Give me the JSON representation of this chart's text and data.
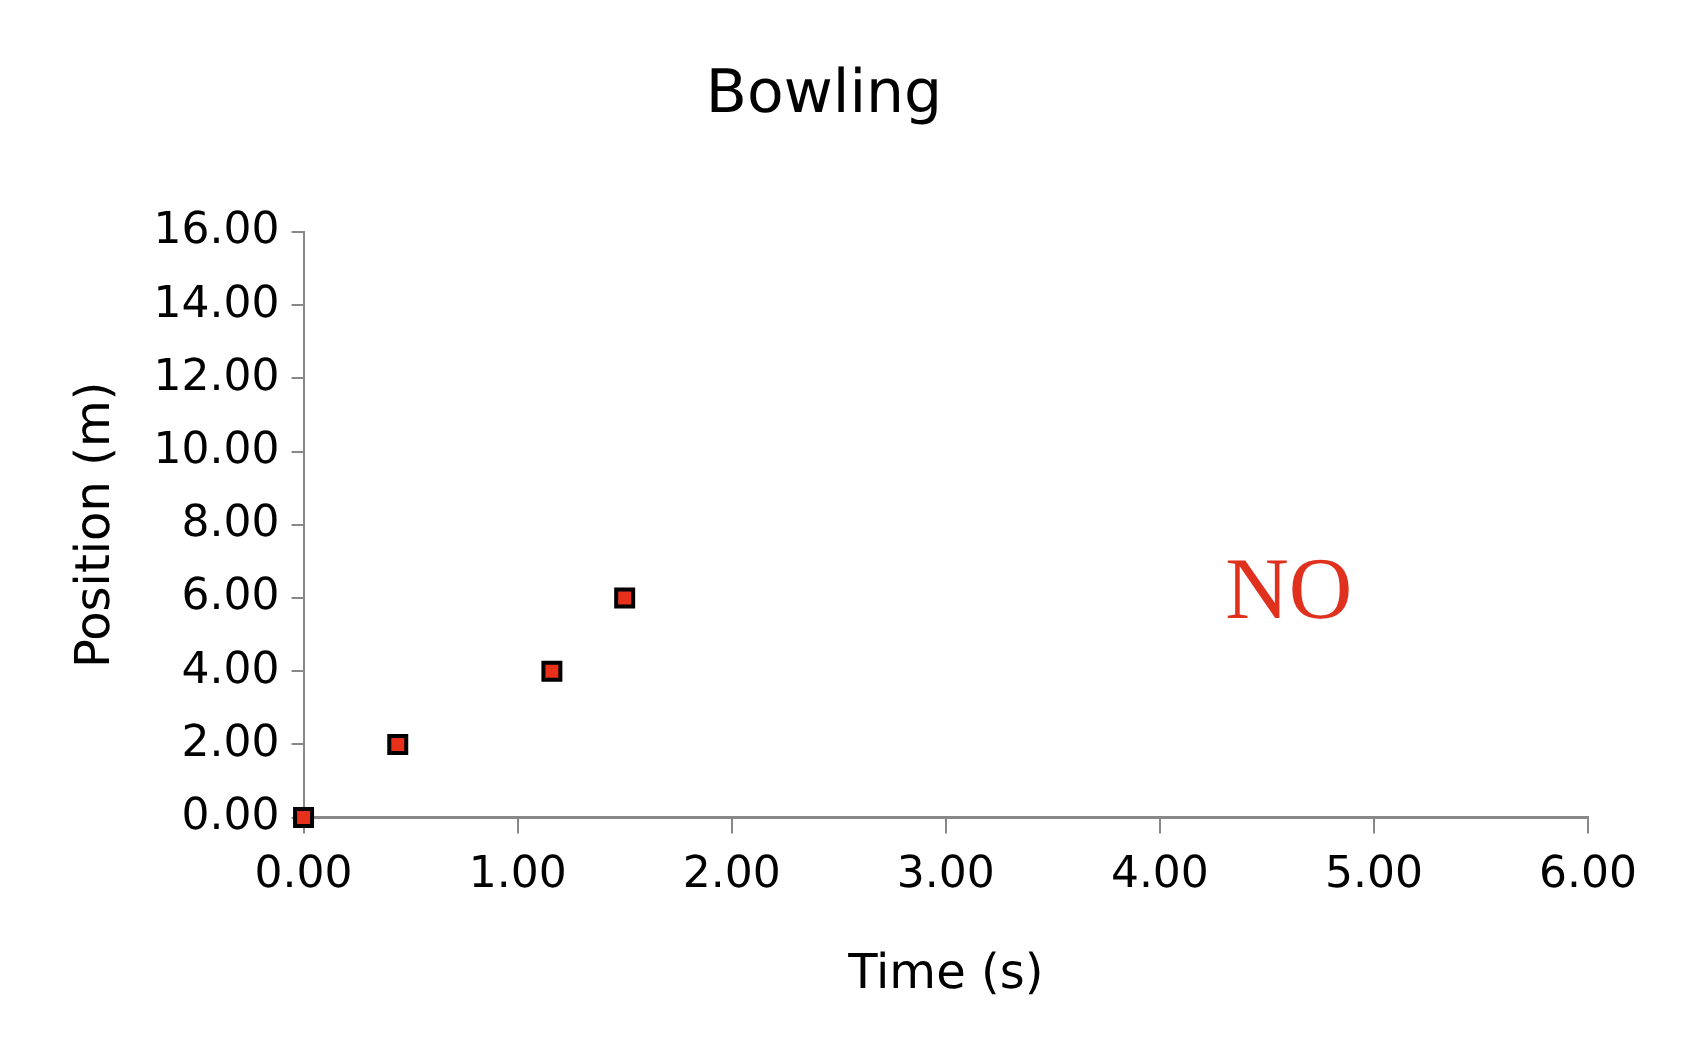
{
  "chart_data": {
    "type": "scatter",
    "title": "Bowling",
    "xlabel": "Time (s)",
    "ylabel": "Position (m)",
    "x": [
      0,
      0.44,
      1.16,
      1.5
    ],
    "series": [
      {
        "color": "#e8301a",
        "values": [
          0,
          2,
          4,
          6
        ]
      }
    ],
    "xlim": [
      0,
      6
    ],
    "xticks": [
      {
        "value": 0,
        "label": "0.00"
      },
      {
        "value": 1,
        "label": "1.00"
      },
      {
        "value": 2,
        "label": "2.00"
      },
      {
        "value": 3,
        "label": "3.00"
      },
      {
        "value": 4,
        "label": "4.00"
      },
      {
        "value": 5,
        "label": "5.00"
      },
      {
        "value": 6,
        "label": "6.00"
      }
    ],
    "ylim": [
      0,
      16
    ],
    "yticks": [
      {
        "value": 0,
        "label": "0.00"
      },
      {
        "value": 2,
        "label": "2.00"
      },
      {
        "value": 4,
        "label": "4.00"
      },
      {
        "value": 6,
        "label": "6.00"
      },
      {
        "value": 8,
        "label": "8.00"
      },
      {
        "value": 10,
        "label": "10.00"
      },
      {
        "value": 12,
        "label": "12.00"
      },
      {
        "value": 14,
        "label": "14.00"
      },
      {
        "value": 16,
        "label": "16.00"
      }
    ],
    "annotations": [
      "NO"
    ],
    "grid": false,
    "legend": false,
    "marker": "square"
  }
}
